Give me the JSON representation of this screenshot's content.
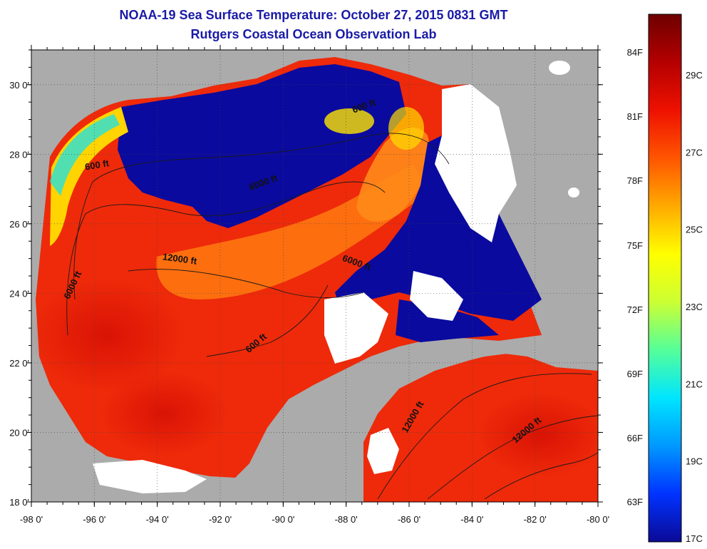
{
  "header": {
    "title": "NOAA-19 Sea Surface Temperature:  October 27, 2015 0831 GMT",
    "subtitle": "Rutgers Coastal Ocean Observation Lab"
  },
  "map": {
    "lon_range": [
      -98,
      -80
    ],
    "lat_range": [
      18,
      31
    ],
    "x_ticks": [
      {
        "lon": -98,
        "label": "-98 0'"
      },
      {
        "lon": -96,
        "label": "-96 0'"
      },
      {
        "lon": -94,
        "label": "-94 0'"
      },
      {
        "lon": -92,
        "label": "-92 0'"
      },
      {
        "lon": -90,
        "label": "-90 0'"
      },
      {
        "lon": -88,
        "label": "-88 0'"
      },
      {
        "lon": -86,
        "label": "-86 0'"
      },
      {
        "lon": -84,
        "label": "-84 0'"
      },
      {
        "lon": -82,
        "label": "-82 0'"
      },
      {
        "lon": -80,
        "label": "-80 0'"
      }
    ],
    "y_ticks": [
      {
        "lat": 30,
        "label": "30 0'"
      },
      {
        "lat": 28,
        "label": "28 0'"
      },
      {
        "lat": 26,
        "label": "26 0'"
      },
      {
        "lat": 24,
        "label": "24 0'"
      },
      {
        "lat": 22,
        "label": "22 0'"
      },
      {
        "lat": 20,
        "label": "20 0'"
      },
      {
        "lat": 18,
        "label": "18 0'"
      }
    ],
    "contour_labels": [
      {
        "text": "600 ft",
        "lon": -95.9,
        "lat": 27.6,
        "angle": -10
      },
      {
        "text": "600 ft",
        "lon": -87.4,
        "lat": 29.3,
        "angle": -20
      },
      {
        "text": "6000 ft",
        "lon": -90.6,
        "lat": 27.1,
        "angle": -20
      },
      {
        "text": "12000 ft",
        "lon": -93.3,
        "lat": 24.9,
        "angle": 8
      },
      {
        "text": "6000 ft",
        "lon": -87.7,
        "lat": 24.8,
        "angle": 20
      },
      {
        "text": "6000 ft",
        "lon": -96.6,
        "lat": 24.2,
        "angle": -65
      },
      {
        "text": "600 ft",
        "lon": -90.8,
        "lat": 22.5,
        "angle": -40
      },
      {
        "text": "12000 ft",
        "lon": -85.8,
        "lat": 20.4,
        "angle": -60
      },
      {
        "text": "12000 ft",
        "lon": -82.2,
        "lat": 20.0,
        "angle": -40
      }
    ]
  },
  "colorbar": {
    "colors": [
      "#0a0a96",
      "#0033ff",
      "#0099ff",
      "#00e5ff",
      "#55ff99",
      "#ccff33",
      "#ffff00",
      "#ffaa00",
      "#ff5500",
      "#ee1100",
      "#b40000",
      "#6e0000"
    ],
    "fahrenheit_labels": [
      {
        "label": "84F",
        "frac": 0.9063
      },
      {
        "label": "81F",
        "frac": 0.7609
      },
      {
        "label": "78F",
        "frac": 0.6156
      },
      {
        "label": "75F",
        "frac": 0.4688
      },
      {
        "label": "72F",
        "frac": 0.3234
      },
      {
        "label": "69F",
        "frac": 0.1781
      },
      {
        "label": "66F",
        "frac": 0.0328
      },
      {
        "label": "63F",
        "frac": -0.1125
      }
    ],
    "celsius_labels": [
      {
        "label": "29C",
        "frac": 0.8547
      },
      {
        "label": "27C",
        "frac": 0.6797
      },
      {
        "label": "25C",
        "frac": 0.5047
      },
      {
        "label": "23C",
        "frac": 0.3297
      },
      {
        "label": "21C",
        "frac": 0.1547
      },
      {
        "label": "19C",
        "frac": -0.0203
      },
      {
        "label": "17C",
        "frac": -0.1953
      }
    ]
  }
}
